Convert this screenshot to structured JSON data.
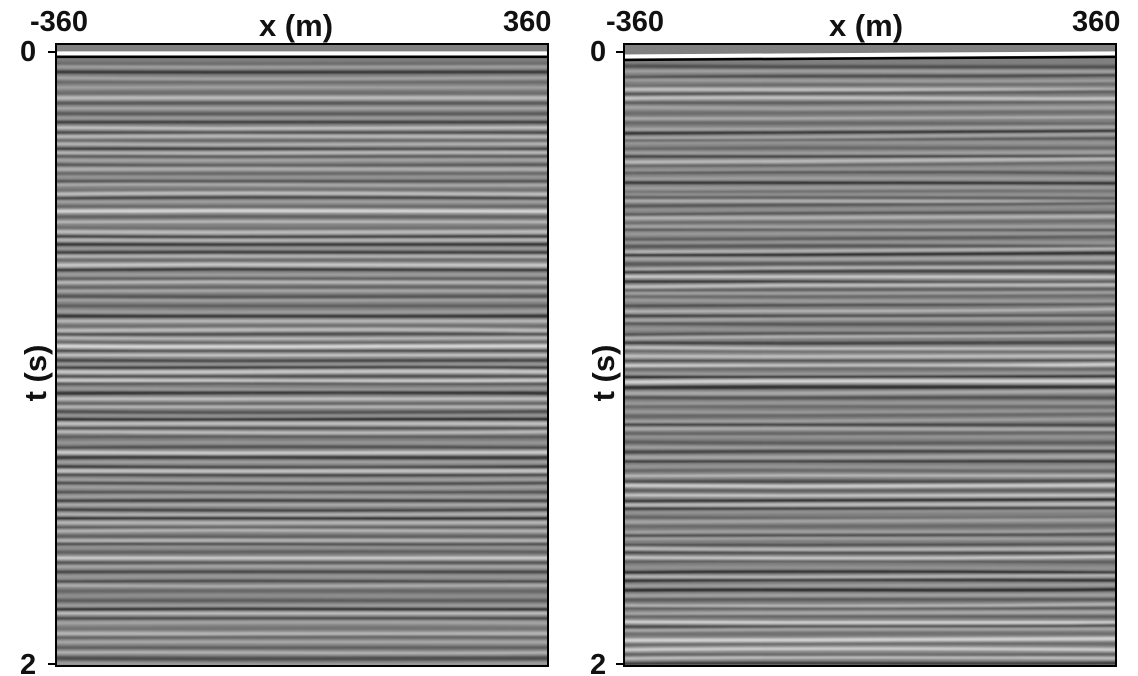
{
  "chart_data": [
    {
      "type": "heatmap",
      "xlabel": "x (m)",
      "ylabel": "t (s)",
      "x_ticks": [
        "-360",
        "360"
      ],
      "y_ticks": [
        "0",
        "2"
      ],
      "xlim": [
        -360,
        360
      ],
      "ylim": [
        2,
        0
      ],
      "colormap": "grayscale seismic wiggle",
      "first_event_t": [
        0.03,
        0.03
      ],
      "reflector_dip": "flat"
    },
    {
      "type": "heatmap",
      "xlabel": "x (m)",
      "ylabel": "t (s)",
      "x_ticks": [
        "-360",
        "360"
      ],
      "y_ticks": [
        "0",
        "2"
      ],
      "xlim": [
        -360,
        360
      ],
      "ylim": [
        2,
        0
      ],
      "colormap": "grayscale seismic wiggle",
      "first_event_t": [
        0.04,
        0.03
      ],
      "reflector_dip": "slight"
    }
  ],
  "colors": {
    "background": "#808080",
    "frame": "#000000",
    "label": "#111111"
  }
}
